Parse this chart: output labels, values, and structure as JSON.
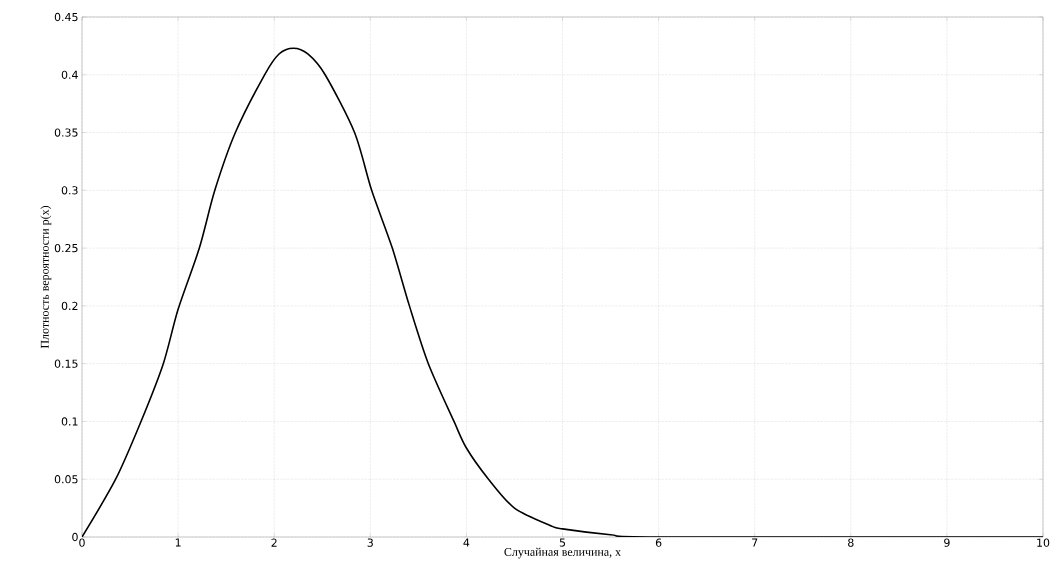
{
  "chart_data": {
    "type": "line",
    "xlabel": "Случайная величина, x",
    "ylabel": "Плотность вероятности p(x)",
    "x": [
      0,
      0.35,
      0.614,
      0.846,
      1.0,
      1.221,
      1.382,
      1.596,
      1.9,
      2.05,
      2.2,
      2.35,
      2.53,
      2.836,
      3.014,
      3.229,
      3.407,
      3.604,
      3.871,
      4.0,
      4.23,
      4.5,
      4.871,
      5.0,
      5.5,
      6,
      10
    ],
    "series": [
      {
        "color": "#000000",
        "values": [
          0,
          0.05,
          0.1,
          0.15,
          0.197,
          0.25,
          0.3,
          0.35,
          0.4,
          0.418,
          0.423,
          0.418,
          0.4,
          0.35,
          0.3,
          0.25,
          0.2,
          0.15,
          0.1,
          0.077,
          0.05,
          0.025,
          0.01,
          0.007,
          0.002,
          0,
          0
        ]
      }
    ],
    "xlim": [
      0,
      10
    ],
    "ylim": [
      0,
      0.45
    ],
    "xticks": [
      0,
      1,
      2,
      3,
      4,
      5,
      6,
      7,
      8,
      9,
      10
    ],
    "yticks": [
      0,
      0.05,
      0.1,
      0.15,
      0.2,
      0.25,
      0.3,
      0.35,
      0.4,
      0.45
    ],
    "grid": true,
    "line_style": "solid",
    "marker": "none"
  }
}
